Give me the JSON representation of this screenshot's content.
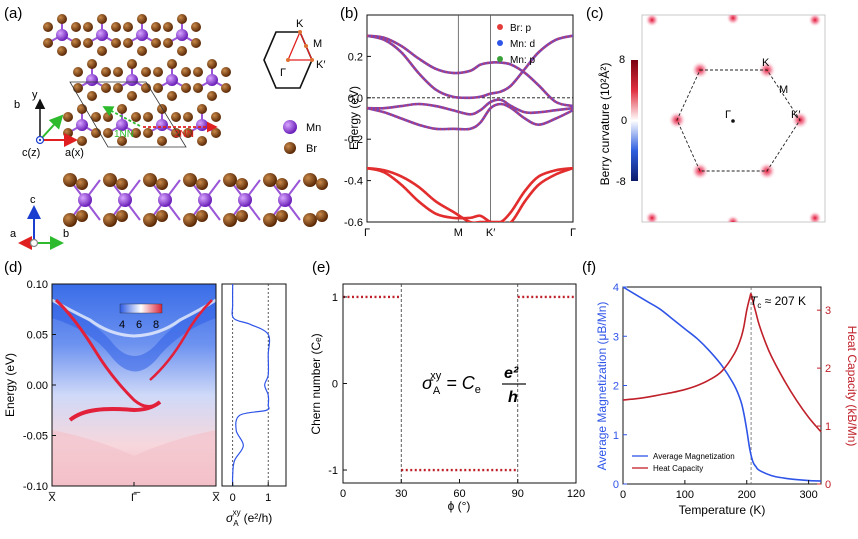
{
  "panels": {
    "a": {
      "letter": "(a)",
      "atoms": [
        "Mn",
        "Br"
      ],
      "top_axes": {
        "y": "y",
        "x": "a(x)",
        "b": "b",
        "z": "c(z)"
      },
      "side_axes": {
        "c": "c",
        "a": "a",
        "b": "b"
      },
      "neighbors": [
        "1NN",
        "2NN"
      ],
      "bz_points": [
        "K",
        "M",
        "K′",
        "Γ"
      ],
      "colors": {
        "Mn": "#8a2be2",
        "Br": "#7a3d0c",
        "nn1": "#2dbb2d",
        "nn2": "#e02020"
      }
    },
    "b": {
      "letter": "(b)",
      "legend": [
        "Br: p",
        "Mn: d",
        "Mn: p"
      ],
      "legend_colors": [
        "#e43b3b",
        "#2f55e8",
        "#3aa13a"
      ]
    },
    "c": {
      "letter": "(c)",
      "colorbar_label": "Berry curvature (10²Å²)",
      "colorbar_ticks": [
        "8",
        "0",
        "-8"
      ],
      "points": [
        "K",
        "M",
        "K′",
        "Γ"
      ]
    },
    "d": {
      "letter": "(d)",
      "colorbar_ticks": [
        "4",
        "6",
        "8"
      ],
      "sigma_label": "σ",
      "sigma_sup": "xy",
      "sigma_sub": "A",
      "sigma_unit": "(e²/h)",
      "sigma_ticks": [
        "0",
        "1"
      ]
    },
    "e": {
      "letter": "(e)",
      "formula": {
        "lhs": "σ",
        "sup": "xy",
        "sub": "A",
        "eq": " = C",
        "csub": "e",
        "num": "e²",
        "den": "h"
      }
    },
    "f": {
      "letter": "(f)",
      "tc_label": "T",
      "tc_sub": "c",
      "tc_value": " ≈ 207 K",
      "legend": [
        "Average Magnetization",
        "Heat Capacity"
      ],
      "colors": {
        "mag": "#2f55e8",
        "heat": "#c0202a"
      }
    }
  },
  "chart_data": [
    {
      "id": "b",
      "type": "line",
      "title": "",
      "xlabel": "",
      "ylabel": "Energy (eV)",
      "categories": [
        "Γ",
        "M",
        "K′",
        "Γ"
      ],
      "ylim": [
        -0.6,
        0.4
      ],
      "yticks": [
        -0.6,
        -0.4,
        -0.2,
        0.0,
        0.2
      ],
      "series": [
        {
          "name": "band 1",
          "x": [
            0,
            0.5,
            1,
            1.5,
            2,
            2.5,
            3,
            3.3,
            3.6,
            3.9,
            4.2,
            4.6,
            5,
            5.5,
            6
          ],
          "y": [
            0.3,
            0.29,
            0.25,
            0.19,
            0.14,
            0.12,
            0.13,
            0.16,
            0.17,
            0.17,
            0.16,
            0.12,
            0.06,
            -0.02,
            -0.04
          ]
        },
        {
          "name": "band 2",
          "x": [
            0,
            0.5,
            1,
            1.5,
            2,
            2.5,
            3,
            3.3,
            3.6,
            3.9,
            4.2,
            4.6,
            5,
            5.5,
            6
          ],
          "y": [
            0.3,
            0.28,
            0.22,
            0.12,
            0.04,
            0.005,
            0.0,
            0.005,
            0.02,
            0.03,
            0.06,
            0.14,
            0.22,
            0.28,
            0.3
          ]
        },
        {
          "name": "band 3",
          "x": [
            0,
            0.5,
            1,
            1.5,
            2,
            2.5,
            3,
            3.3,
            3.6,
            3.9,
            4.2,
            4.6,
            5,
            5.5,
            6
          ],
          "y": [
            -0.05,
            -0.05,
            -0.04,
            -0.03,
            -0.04,
            -0.06,
            -0.08,
            -0.06,
            -0.02,
            -0.01,
            -0.04,
            -0.07,
            -0.07,
            -0.06,
            -0.05
          ]
        },
        {
          "name": "band 4",
          "x": [
            0,
            0.5,
            1,
            1.5,
            2,
            2.5,
            3,
            3.3,
            3.6,
            3.9,
            4.2,
            4.6,
            5,
            5.5,
            6
          ],
          "y": [
            -0.05,
            -0.07,
            -0.1,
            -0.13,
            -0.15,
            -0.15,
            -0.15,
            -0.12,
            -0.05,
            -0.03,
            -0.05,
            -0.1,
            -0.13,
            -0.1,
            -0.06
          ]
        },
        {
          "name": "band 5",
          "x": [
            0,
            0.5,
            1,
            1.5,
            2,
            2.5,
            3,
            3.3,
            3.6,
            3.9,
            4.2,
            4.6,
            5,
            5.5,
            6
          ],
          "y": [
            -0.34,
            -0.36,
            -0.42,
            -0.5,
            -0.56,
            -0.58,
            -0.58,
            -0.57,
            -0.6,
            -0.6,
            -0.55,
            -0.45,
            -0.38,
            -0.35,
            -0.34
          ]
        },
        {
          "name": "band 6",
          "x": [
            0,
            0.5,
            1,
            1.5,
            2,
            2.5,
            3,
            3.3,
            3.6,
            3.9,
            4.2,
            4.6,
            5,
            5.5,
            6
          ],
          "y": [
            -0.34,
            -0.35,
            -0.38,
            -0.43,
            -0.5,
            -0.55,
            -0.6,
            -0.6,
            -0.6,
            -0.6,
            -0.6,
            -0.5,
            -0.42,
            -0.37,
            -0.34
          ]
        }
      ]
    },
    {
      "id": "d",
      "type": "heatmap",
      "title": "",
      "xlabel": "",
      "ylabel": "Energy (eV)",
      "categories": [
        "X̅",
        "Γ̅",
        "X̅"
      ],
      "ylim": [
        -0.1,
        0.1
      ],
      "yticks": [
        -0.1,
        -0.05,
        0.0,
        0.05,
        0.1
      ],
      "colorbar_range": [
        4,
        8
      ],
      "side_plot": {
        "xlabel": "σA xy (e²/h)",
        "xlim": [
          -0.3,
          1.5
        ],
        "xticks": [
          0,
          1
        ],
        "x": [
          0.0,
          0.0,
          0.03,
          0.5,
          1.0,
          1.0,
          1.0,
          0.9,
          1.0,
          1.0,
          0.95,
          0.2,
          0.1,
          0.3,
          0.05,
          0.0,
          0.0
        ],
        "y": [
          0.1,
          0.08,
          0.066,
          0.06,
          0.05,
          0.03,
          0.01,
          0.0,
          -0.01,
          -0.02,
          -0.025,
          -0.03,
          -0.045,
          -0.06,
          -0.075,
          -0.09,
          -0.1
        ]
      }
    },
    {
      "id": "e",
      "type": "line",
      "title": "",
      "xlabel": "ϕ (°)",
      "ylabel": "Chern number (Cₑ)",
      "xlim": [
        0,
        120
      ],
      "ylim": [
        -1.15,
        1.15
      ],
      "xticks": [
        0,
        30,
        60,
        90,
        120
      ],
      "yticks": [
        -1,
        0,
        1
      ],
      "vlines": [
        30,
        90
      ],
      "series": [
        {
          "name": "Ce 0-30",
          "x": [
            0,
            30
          ],
          "y": [
            1,
            1
          ]
        },
        {
          "name": "Ce 30-90",
          "x": [
            30,
            90
          ],
          "y": [
            -1,
            -1
          ]
        },
        {
          "name": "Ce 90-120",
          "x": [
            90,
            120
          ],
          "y": [
            1,
            1
          ]
        }
      ]
    },
    {
      "id": "f",
      "type": "line",
      "title": "",
      "xlabel": "Temperature (K)",
      "ylabel": "Average Magnetization (μB/Mn)",
      "y2label": "Heat Capacity (kB/Mn)",
      "xlim": [
        0,
        320
      ],
      "ylim": [
        0,
        4
      ],
      "y2lim": [
        0,
        3.4
      ],
      "xticks": [
        0,
        100,
        200,
        300
      ],
      "yticks": [
        0,
        1,
        2,
        3,
        4
      ],
      "y2ticks": [
        0,
        1,
        2,
        3
      ],
      "vline": 207,
      "series": [
        {
          "name": "Average Magnetization",
          "axis": "left",
          "x": [
            0,
            20,
            40,
            60,
            80,
            100,
            120,
            140,
            160,
            180,
            190,
            195,
            200,
            205,
            210,
            215,
            220,
            240,
            260,
            280,
            300,
            320
          ],
          "y": [
            4.0,
            3.85,
            3.7,
            3.55,
            3.35,
            3.15,
            2.95,
            2.7,
            2.4,
            2.0,
            1.7,
            1.45,
            1.1,
            0.7,
            0.45,
            0.35,
            0.28,
            0.17,
            0.12,
            0.09,
            0.07,
            0.06
          ]
        },
        {
          "name": "Heat Capacity",
          "axis": "right",
          "x": [
            0,
            20,
            40,
            60,
            80,
            100,
            120,
            140,
            160,
            180,
            190,
            195,
            200,
            205,
            207,
            210,
            215,
            220,
            230,
            240,
            260,
            280,
            300,
            320
          ],
          "y": [
            1.45,
            1.47,
            1.5,
            1.54,
            1.58,
            1.63,
            1.7,
            1.8,
            1.95,
            2.25,
            2.5,
            2.7,
            3.0,
            3.22,
            3.28,
            3.15,
            2.95,
            2.75,
            2.45,
            2.2,
            1.8,
            1.45,
            1.15,
            0.9
          ]
        }
      ]
    }
  ]
}
